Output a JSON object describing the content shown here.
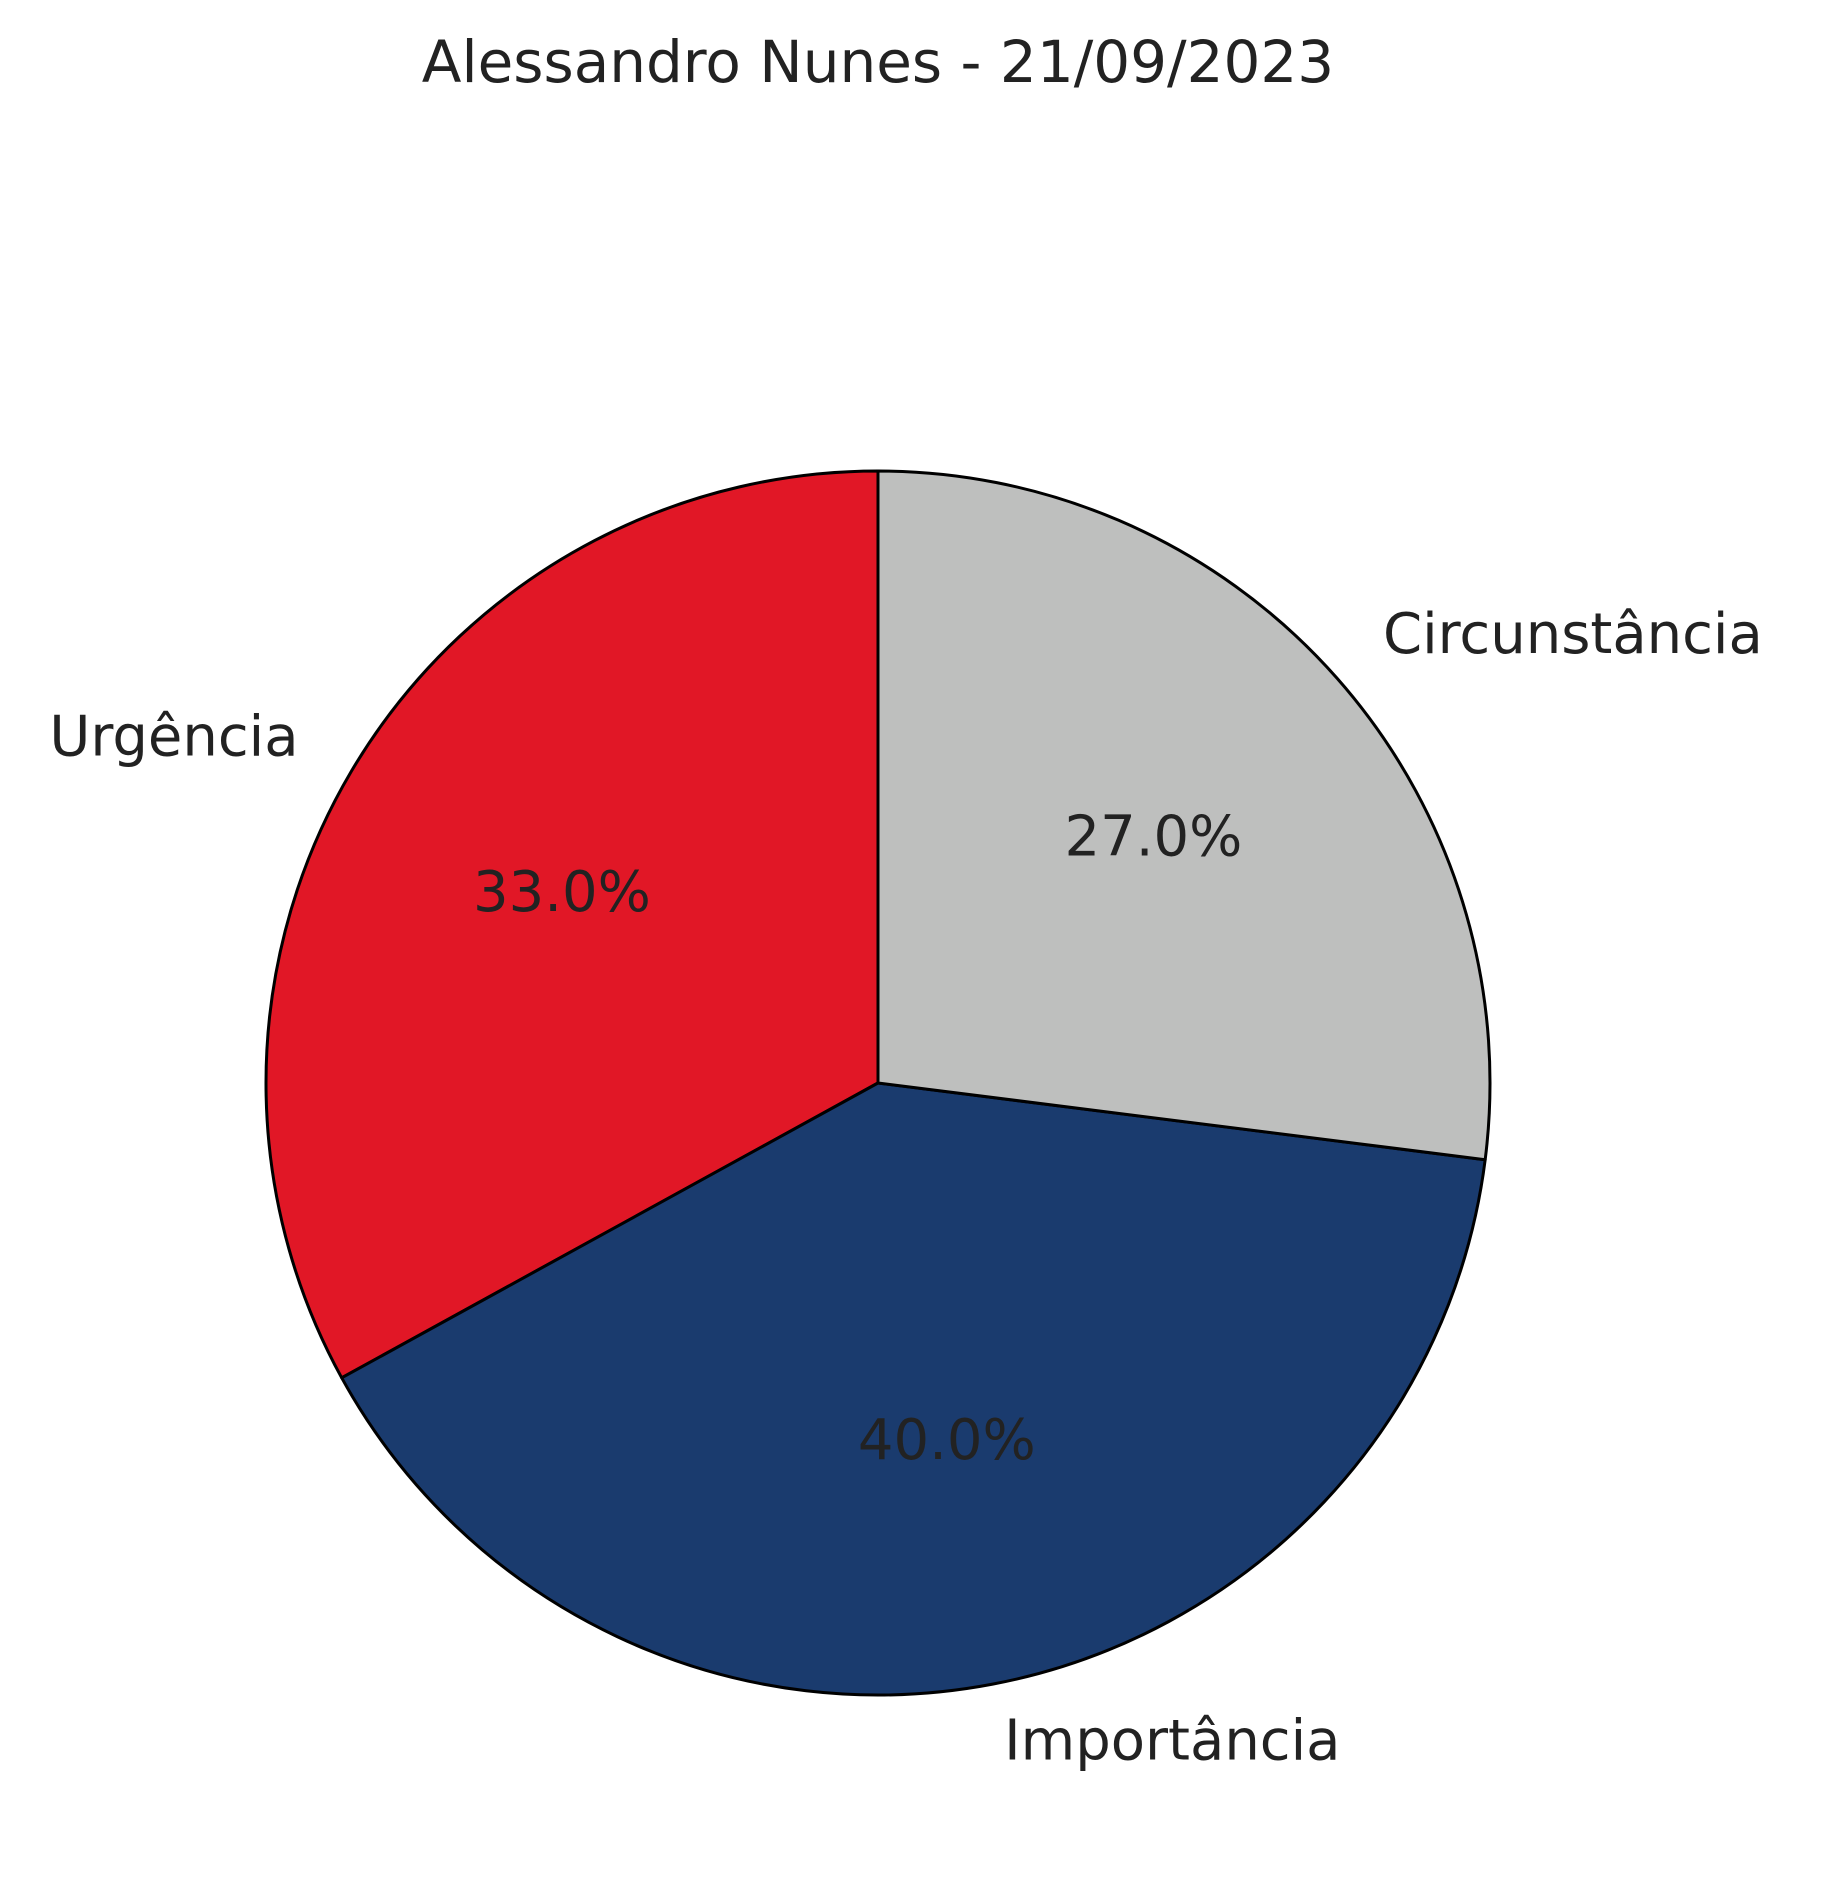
{
  "chart_data": {
    "type": "pie",
    "title": "Alessandro Nunes - 21/09/2023",
    "start_angle": "top, counter-clockwise",
    "slices": [
      {
        "label": "Urgência",
        "value": 33.0,
        "pct_label": "33.0%",
        "color": "#E11726"
      },
      {
        "label": "Importância",
        "value": 40.0,
        "pct_label": "40.0%",
        "color": "#1A3B6E"
      },
      {
        "label": "Circunstância",
        "value": 27.0,
        "pct_label": "27.0%",
        "color": "#BEBFBE"
      }
    ]
  }
}
